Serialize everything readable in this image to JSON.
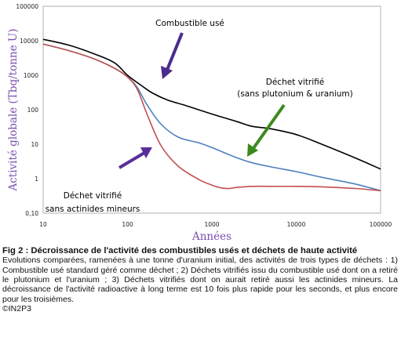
{
  "chart_data": {
    "type": "line",
    "xlabel": "Années",
    "ylabel": "Activité globale (Tbq/tonne U)",
    "x_scale": "log",
    "y_scale": "log",
    "xlim": [
      10,
      100000
    ],
    "ylim": [
      0.1,
      100000
    ],
    "x_ticks": [
      "10",
      "100",
      "1000",
      "10000",
      "100000"
    ],
    "y_ticks": [
      "0,10",
      "1",
      "10",
      "100",
      "1000",
      "10000",
      "100000"
    ],
    "grid": false,
    "series": [
      {
        "name": "Combustible usé",
        "color": "#000000",
        "x": [
          10,
          20,
          40,
          70,
          100,
          150,
          200,
          300,
          500,
          1000,
          2000,
          3000,
          5000,
          10000,
          20000,
          50000,
          100000
        ],
        "y": [
          11000,
          7500,
          4200,
          2300,
          1000,
          480,
          300,
          190,
          130,
          75,
          45,
          33,
          28,
          19,
          10,
          4,
          1.9
        ]
      },
      {
        "name": "Déchet vitrifié (sans plutonium & uranium)",
        "color": "#4f81bd",
        "x": [
          10,
          20,
          40,
          70,
          100,
          130,
          170,
          250,
          400,
          700,
          1000,
          2000,
          3000,
          5000,
          10000,
          20000,
          50000,
          100000
        ],
        "y": [
          8000,
          5200,
          3000,
          1600,
          900,
          450,
          140,
          38,
          16,
          11,
          8,
          4,
          2.9,
          2.2,
          1.6,
          1.1,
          0.7,
          0.45
        ]
      },
      {
        "name": "Déchet vitrifié sans actinides mineurs",
        "color": "#c0504d",
        "x": [
          10,
          20,
          40,
          70,
          100,
          130,
          170,
          250,
          400,
          700,
          1000,
          1300,
          1600,
          2000,
          3000,
          5000,
          10000,
          20000,
          50000,
          100000
        ],
        "y": [
          8000,
          5200,
          3000,
          1600,
          880,
          400,
          75,
          9,
          2.3,
          0.95,
          0.65,
          0.54,
          0.52,
          0.56,
          0.6,
          0.6,
          0.6,
          0.58,
          0.52,
          0.45
        ]
      }
    ],
    "annotations": [
      {
        "text": "Combustible usé",
        "target_series": 0,
        "arrow_color": "#4b2c8c"
      },
      {
        "lines": [
          "Déchet vitrifié",
          "(sans plutonium & uranium)"
        ],
        "target_series": 1,
        "arrow_color": "#3c8a1e"
      },
      {
        "lines": [
          "Déchet vitrifié",
          "sans actinides mineurs"
        ],
        "target_series": 2,
        "arrow_color": "#5a2f9a"
      }
    ]
  },
  "caption": {
    "title": "Fig 2 : Décroissance de l'activité des combustibles usés et déchets de haute activité",
    "body": "Evolutions comparées, ramenées à une tonne d'uranium initial, des activités de trois types de déchets : 1) Combustible usé standard géré comme déchet ; 2) Déchets vitrifiés issu du combustible usé dont on a retiré le plutonium et l'uranium ; 3) Déchets vitrifiés dont on aurait retiré aussi les actinides mineurs. La décroissance de l'activité radioactive à long terme est 10 fois plus rapide pour les seconds, et plus encore pour les troisièmes.",
    "credit": "©IN2P3"
  }
}
